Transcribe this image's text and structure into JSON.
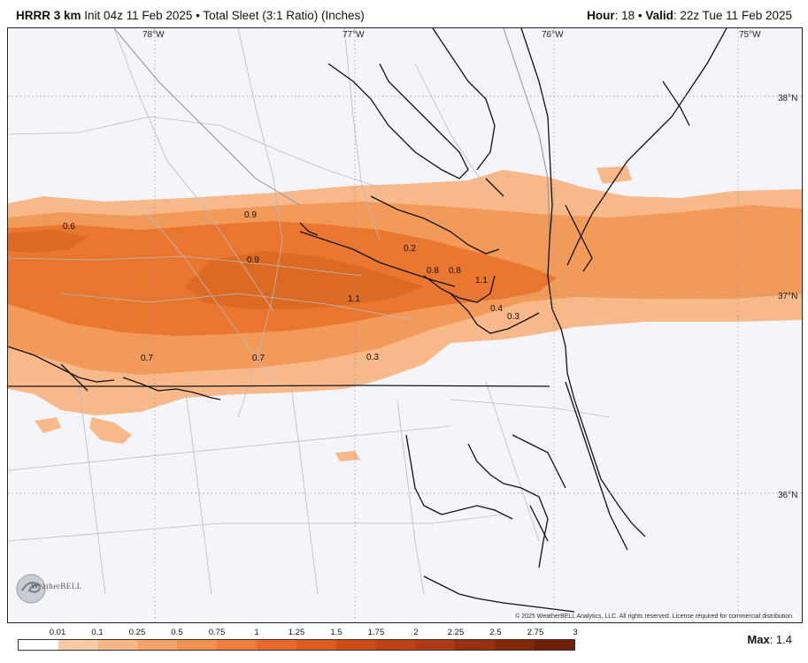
{
  "header": {
    "model": "HRRR 3 km",
    "init": "Init 04z 11 Feb 2025",
    "sep": "•",
    "product": "Total Sleet (3:1 Ratio) (Inches)",
    "hour_label": "Hour",
    "hour_value": ": 18",
    "valid_label": "Valid",
    "valid_value": ": 22z Tue 11 Feb 2025"
  },
  "map": {
    "lon_labels": [
      "78°W",
      "77°W",
      "76°W",
      "75°W"
    ],
    "lat_labels": [
      "38°N",
      "37°N",
      "36°N"
    ],
    "value_labels": [
      "0.6",
      "0.9",
      "0.9",
      "0.2",
      "0.8",
      "0.8",
      "1.1",
      "1.1",
      "0.4",
      "0.3",
      "0.7",
      "0.7",
      "0.3"
    ],
    "copyright": "© 2025 WeatherBELL Analytics, LLC. All rights reserved. License required for commercial distribution.",
    "logo_text": "WeatherBELL"
  },
  "legend": {
    "ticks": [
      "0.01",
      "0.1",
      "0.25",
      "0.5",
      "0.75",
      "1",
      "1.25",
      "1.5",
      "1.75",
      "2",
      "2.25",
      "2.5",
      "2.75",
      "3"
    ],
    "colors": [
      "#ffffff",
      "#f9c9a4",
      "#f7b583",
      "#f5a266",
      "#f29050",
      "#ef7d3a",
      "#e9692a",
      "#df5a1e",
      "#d04c16",
      "#c04213",
      "#ad3811",
      "#982f0e",
      "#84270b",
      "#6f1f08"
    ],
    "max_label": "Max",
    "max_value": ": 1.4"
  },
  "colors": {
    "background": "#f3f5fb",
    "band_light": "#f7b98a",
    "band_mid": "#f29a5a",
    "band_dark": "#e9772f",
    "band_darker": "#dd6a22",
    "coast": "#111111",
    "county": "#b9bcc4"
  }
}
